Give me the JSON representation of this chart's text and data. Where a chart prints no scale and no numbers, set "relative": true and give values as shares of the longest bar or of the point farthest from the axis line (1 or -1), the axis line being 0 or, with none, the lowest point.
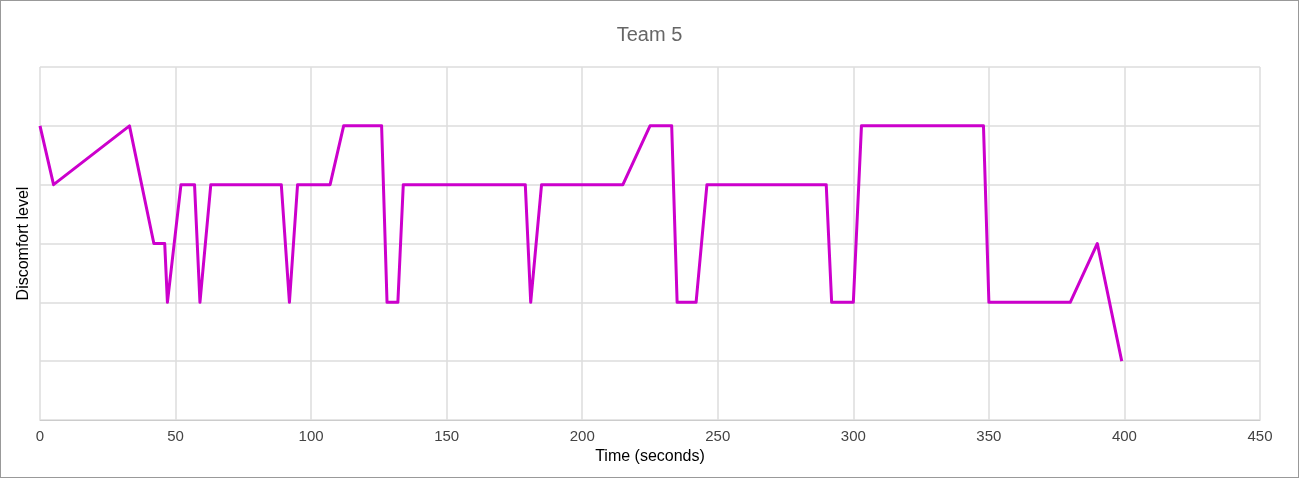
{
  "chart_data": {
    "type": "line",
    "title": "Team 5",
    "xlabel": "Time (seconds)",
    "ylabel": "Discomfort level",
    "relative": true,
    "grid": true,
    "marker": "none",
    "line_style": "solid",
    "xlim": [
      0,
      450
    ],
    "xticks": [
      0,
      50,
      100,
      150,
      200,
      250,
      300,
      350,
      400,
      450
    ],
    "series": [
      {
        "color": "#cc00cc",
        "x": [
          0,
          5,
          33,
          42,
          46,
          47,
          52,
          57,
          59,
          63,
          89,
          92,
          95,
          107,
          112,
          126,
          128,
          132,
          134,
          179,
          181,
          185,
          215,
          225,
          233,
          235,
          242,
          246,
          290,
          292,
          300,
          303,
          348,
          350,
          380,
          390,
          399
        ],
        "values": [
          1,
          0.8,
          1,
          0.6,
          0.6,
          0.4,
          0.8,
          0.8,
          0.4,
          0.8,
          0.8,
          0.4,
          0.8,
          0.8,
          1,
          1,
          0.4,
          0.4,
          0.8,
          0.8,
          0.4,
          0.8,
          0.8,
          1,
          1,
          0.4,
          0.4,
          0.8,
          0.8,
          0.4,
          0.4,
          1,
          1,
          0.4,
          0.4,
          0.6,
          0.2
        ]
      }
    ]
  }
}
